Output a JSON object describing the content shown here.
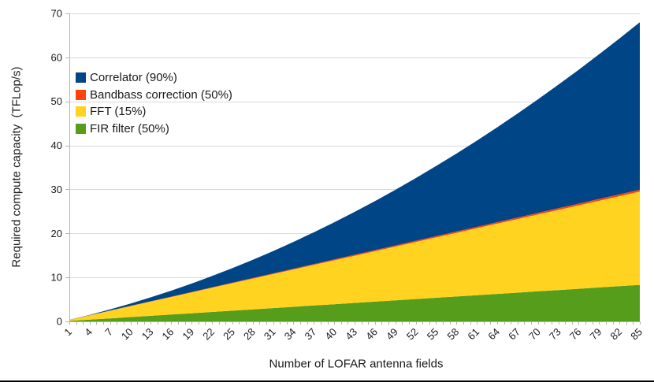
{
  "chart_data": {
    "type": "area",
    "stacked": true,
    "title": "",
    "xlabel": "Number of LOFAR antenna fields",
    "ylabel": "Required compute capacity  (TFLop/s)",
    "xlim": [
      1,
      85
    ],
    "ylim": [
      0,
      70
    ],
    "y_ticks": [
      0,
      10,
      20,
      30,
      40,
      50,
      60,
      70
    ],
    "x_minor_tick_step": 1,
    "grid": "horizontal",
    "legend_position": "upper-left-inside",
    "x": [
      1,
      4,
      7,
      10,
      13,
      16,
      19,
      22,
      25,
      28,
      31,
      34,
      37,
      40,
      43,
      46,
      49,
      52,
      55,
      58,
      61,
      64,
      67,
      70,
      73,
      76,
      79,
      82,
      85
    ],
    "series": [
      {
        "id": "correlator",
        "name": "Correlator (90%)",
        "color": "#004586",
        "values": [
          0.01,
          0.08,
          0.26,
          0.53,
          0.89,
          1.35,
          1.9,
          2.55,
          3.29,
          4.13,
          5.06,
          6.09,
          7.21,
          8.43,
          9.74,
          11.14,
          12.64,
          14.24,
          15.93,
          17.71,
          19.59,
          21.57,
          23.64,
          25.8,
          28.06,
          30.42,
          32.87,
          35.41,
          38.05
        ]
      },
      {
        "id": "bandbass-correction",
        "name": "Bandbass correction (50%)",
        "color": "#ff420e",
        "values": [
          0.01,
          0.02,
          0.04,
          0.05,
          0.07,
          0.08,
          0.1,
          0.12,
          0.13,
          0.15,
          0.16,
          0.18,
          0.2,
          0.21,
          0.23,
          0.24,
          0.26,
          0.28,
          0.29,
          0.31,
          0.32,
          0.34,
          0.36,
          0.37,
          0.39,
          0.4,
          0.42,
          0.43,
          0.45
        ]
      },
      {
        "id": "fft",
        "name": "FFT (15%)",
        "color": "#ffd320",
        "values": [
          0.25,
          1.0,
          1.75,
          2.49,
          3.24,
          3.99,
          4.74,
          5.49,
          6.24,
          6.98,
          7.73,
          8.48,
          9.23,
          9.98,
          10.72,
          11.47,
          12.22,
          12.97,
          13.72,
          14.46,
          15.21,
          15.96,
          16.71,
          17.46,
          18.21,
          18.95,
          19.7,
          20.45,
          21.2
        ]
      },
      {
        "id": "fir-filter",
        "name": "FIR filter (50%)",
        "color": "#579d1c",
        "values": [
          0.1,
          0.39,
          0.68,
          0.98,
          1.27,
          1.56,
          1.85,
          2.15,
          2.44,
          2.73,
          3.03,
          3.32,
          3.61,
          3.9,
          4.2,
          4.49,
          4.78,
          5.08,
          5.37,
          5.66,
          5.95,
          6.25,
          6.54,
          6.83,
          7.13,
          7.42,
          7.71,
          8.0,
          8.3
        ]
      }
    ],
    "stack_order_bottom_to_top": [
      "fir-filter",
      "fft",
      "bandbass-correction",
      "correlator"
    ],
    "colors": {
      "gridline": "#d9d9d9",
      "axis": "#b3b3b3",
      "text": "#1a1a1a"
    }
  }
}
